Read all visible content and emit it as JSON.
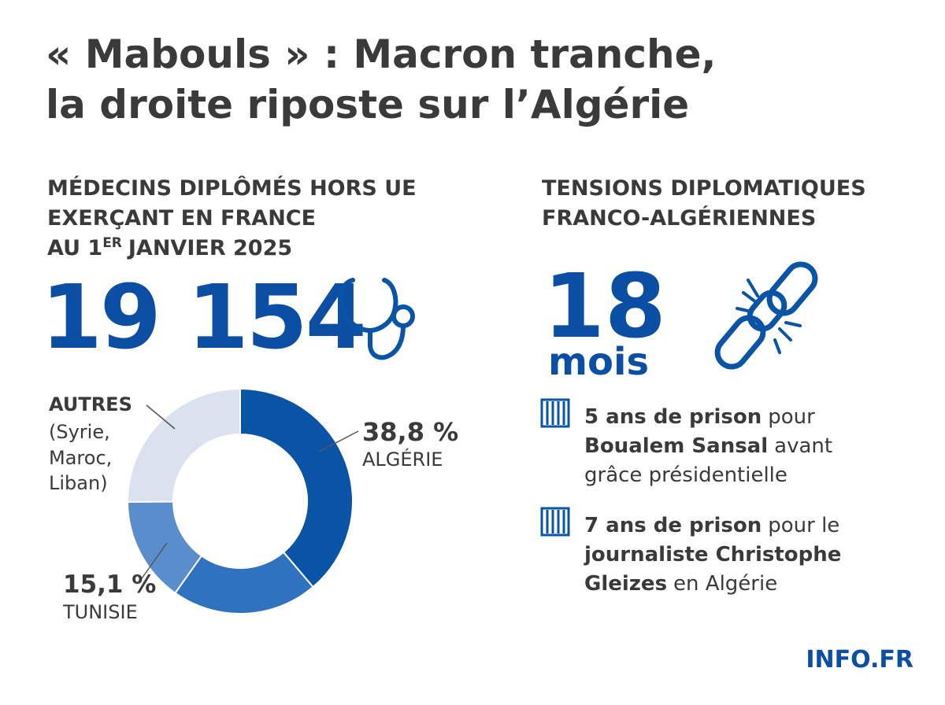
{
  "header": {
    "title_lines": [
      "« Mabouls » : Macron tranche,",
      "la droite riposte sur l’Algérie"
    ]
  },
  "left": {
    "heading_lines": [
      "MÉDECINS DIPLÔMÉS HORS UE",
      "EXERÇANT EN FRANCE"
    ],
    "heading_date": {
      "prefix": "AU 1",
      "superscript": "ER",
      "rest": "JANVIER 2025"
    },
    "big_number": "19 154"
  },
  "chart_data": {
    "type": "donut",
    "categories": [
      "ALGÉRIE",
      null,
      "TUNISIE",
      "AUTRES"
    ],
    "values": [
      38.8,
      21.0,
      15.1,
      25.1
    ],
    "value_labels": [
      "38,8 %",
      null,
      "15,1 %",
      null
    ],
    "colors": [
      "#0a54a8",
      "#2f72bf",
      "#5a8dcb",
      "#d9e2ee"
    ],
    "autres_detail": [
      "(Syrie,",
      "Maroc,",
      "Liban)"
    ]
  },
  "right": {
    "heading_lines": [
      "TENSIONS DIPLOMATIQUES",
      "FRANCO-ALGÉRIENNES"
    ],
    "duration_number": "18",
    "duration_unit": "mois",
    "items": [
      {
        "lines": [
          [
            {
              "text": "5 ans de prison",
              "bold": true
            },
            {
              "text": "pour",
              "bold": false
            }
          ],
          [
            {
              "text": "Boualem Sansal",
              "bold": true
            },
            {
              "text": "avant",
              "bold": false
            }
          ],
          [
            {
              "text": "grâce présidentielle",
              "bold": false
            }
          ]
        ]
      },
      {
        "lines": [
          [
            {
              "text": "7 ans de prison",
              "bold": true
            },
            {
              "text": "pour le",
              "bold": false
            }
          ],
          [
            {
              "text": "journaliste Christophe",
              "bold": true
            }
          ],
          [
            {
              "text": "Gleizes",
              "bold": true
            },
            {
              "text": "en Algérie",
              "bold": false
            }
          ]
        ]
      }
    ]
  },
  "footer": {
    "brand": "INFO.FR"
  }
}
